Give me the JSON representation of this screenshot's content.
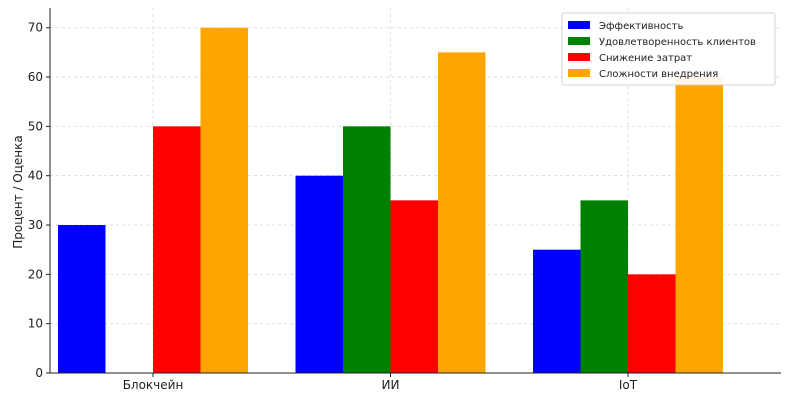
{
  "chart_data": {
    "type": "bar",
    "title": "",
    "xlabel": "",
    "ylabel": "Процент / Оценка",
    "categories": [
      "Блокчейн",
      "ИИ",
      "IoT"
    ],
    "ylim": [
      0,
      74
    ],
    "yticks": [
      0,
      10,
      20,
      30,
      40,
      50,
      60,
      70
    ],
    "grid": true,
    "legend_position": "top-right",
    "series": [
      {
        "name": "Эффективность",
        "color": "#0000ff",
        "values": [
          30,
          40,
          25
        ]
      },
      {
        "name": "Удовлетворенность клиентов",
        "color": "#008000",
        "values": [
          0,
          50,
          35
        ]
      },
      {
        "name": "Снижение затрат",
        "color": "#ff0000",
        "values": [
          50,
          35,
          20
        ]
      },
      {
        "name": "Сложности внедрения",
        "color": "#ffa500",
        "values": [
          70,
          65,
          60
        ]
      }
    ]
  }
}
